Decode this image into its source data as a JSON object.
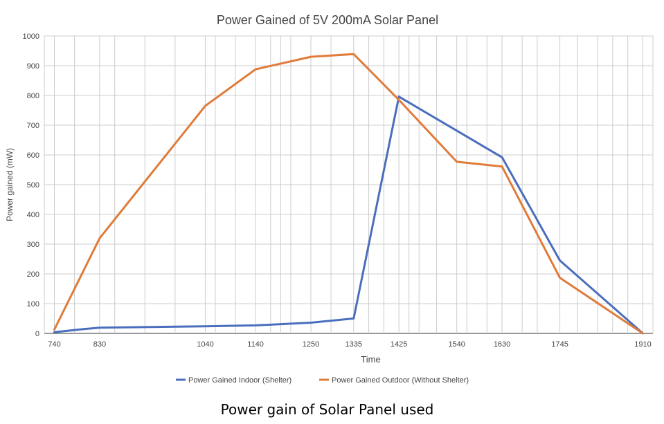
{
  "caption": "Power gain of Solar Panel used",
  "chart_data": {
    "type": "line",
    "title": "Power Gained of 5V 200mA Solar Panel",
    "xlabel": "Time",
    "ylabel": "Power gained (mW)",
    "ylim": [
      0,
      1000
    ],
    "yticks": [
      0,
      100,
      200,
      300,
      400,
      500,
      600,
      700,
      800,
      900,
      1000
    ],
    "x_min": 720,
    "x_max": 1930,
    "xticks": [
      740,
      830,
      1040,
      1140,
      1250,
      1335,
      1425,
      1540,
      1630,
      1745,
      1910
    ],
    "x_gridlines": [
      740,
      780,
      830,
      860,
      920,
      980,
      1040,
      1060,
      1100,
      1140,
      1170,
      1190,
      1210,
      1250,
      1290,
      1335,
      1365,
      1395,
      1425,
      1445,
      1465,
      1500,
      1540,
      1560,
      1600,
      1630,
      1670,
      1700,
      1745,
      1780,
      1820,
      1850,
      1880,
      1910,
      1930
    ],
    "grid": true,
    "legend_position": "bottom",
    "series": [
      {
        "name": "Power Gained Indoor (Shelter)",
        "color": "#4a6ebd",
        "points": [
          {
            "x": 740,
            "y": 4
          },
          {
            "x": 800,
            "y": 15
          },
          {
            "x": 830,
            "y": 19
          },
          {
            "x": 1040,
            "y": 24
          },
          {
            "x": 1140,
            "y": 27
          },
          {
            "x": 1250,
            "y": 36
          },
          {
            "x": 1335,
            "y": 50
          },
          {
            "x": 1425,
            "y": 796
          },
          {
            "x": 1630,
            "y": 592
          },
          {
            "x": 1745,
            "y": 245
          },
          {
            "x": 1910,
            "y": 0
          }
        ]
      },
      {
        "name": "Power Gained Outdoor (Without Shelter)",
        "color": "#e07b39",
        "points": [
          {
            "x": 740,
            "y": 13
          },
          {
            "x": 830,
            "y": 320
          },
          {
            "x": 1040,
            "y": 765
          },
          {
            "x": 1140,
            "y": 888
          },
          {
            "x": 1250,
            "y": 930
          },
          {
            "x": 1335,
            "y": 939
          },
          {
            "x": 1425,
            "y": 785
          },
          {
            "x": 1540,
            "y": 577
          },
          {
            "x": 1630,
            "y": 561
          },
          {
            "x": 1745,
            "y": 187
          },
          {
            "x": 1910,
            "y": 0
          }
        ]
      }
    ],
    "colors": {
      "gridline": "#cccccc",
      "text": "#444444",
      "axis": "#333333"
    }
  }
}
